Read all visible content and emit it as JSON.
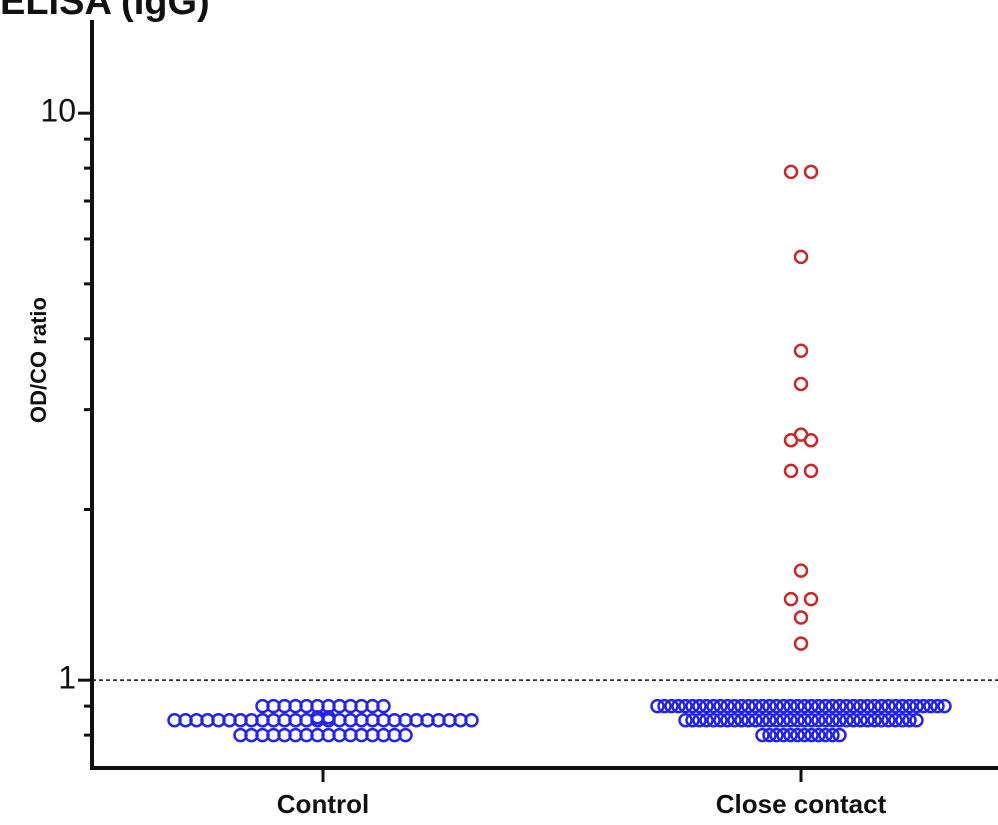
{
  "chart_data": {
    "type": "dotplot",
    "title": "ELISA (IgG)",
    "y_label": "OD/CO ratio",
    "categories": [
      "Control",
      "Close contact"
    ],
    "y_scale": "log",
    "ylim": [
      0.7,
      14.6
    ],
    "yticks": [
      1,
      10
    ],
    "yminorticks": [
      0.8,
      0.9,
      2,
      3,
      4,
      5,
      6,
      7,
      8,
      9
    ],
    "reference_line": 1,
    "series": [
      {
        "color": "#2424e6",
        "values": [
          [
            0.9,
            0.9,
            0.9,
            0.9,
            0.9,
            0.9,
            0.9,
            0.9,
            0.9,
            0.9,
            0.9,
            0.9,
            0.86,
            0.86,
            0.85,
            0.85,
            0.85,
            0.85,
            0.85,
            0.85,
            0.85,
            0.85,
            0.85,
            0.85,
            0.85,
            0.85,
            0.85,
            0.85,
            0.85,
            0.85,
            0.85,
            0.85,
            0.85,
            0.85,
            0.85,
            0.85,
            0.85,
            0.85,
            0.85,
            0.85,
            0.85,
            0.85,
            0.8,
            0.8,
            0.8,
            0.8,
            0.8,
            0.8,
            0.8,
            0.8,
            0.8,
            0.8,
            0.8,
            0.8,
            0.8,
            0.8,
            0.8,
            0.8
          ],
          [
            0.9,
            0.9,
            0.9,
            0.9,
            0.9,
            0.9,
            0.9,
            0.9,
            0.9,
            0.9,
            0.9,
            0.9,
            0.9,
            0.9,
            0.9,
            0.9,
            0.9,
            0.9,
            0.9,
            0.9,
            0.9,
            0.9,
            0.9,
            0.9,
            0.9,
            0.9,
            0.9,
            0.9,
            0.9,
            0.9,
            0.9,
            0.9,
            0.9,
            0.9,
            0.9,
            0.9,
            0.9,
            0.9,
            0.9,
            0.9,
            0.9,
            0.9,
            0.85,
            0.85,
            0.85,
            0.85,
            0.85,
            0.85,
            0.85,
            0.85,
            0.85,
            0.85,
            0.85,
            0.85,
            0.85,
            0.85,
            0.85,
            0.85,
            0.85,
            0.85,
            0.85,
            0.85,
            0.85,
            0.85,
            0.85,
            0.85,
            0.85,
            0.85,
            0.85,
            0.85,
            0.85,
            0.85,
            0.85,
            0.85,
            0.85,
            0.85,
            0.8,
            0.8,
            0.8,
            0.8,
            0.8,
            0.8,
            0.8,
            0.8,
            0.8,
            0.8,
            0.8,
            0.8
          ]
        ]
      },
      {
        "color": "#c42a2a",
        "values": [
          [],
          [
            7.88,
            7.88,
            5.58,
            3.81,
            3.33,
            2.71,
            2.65,
            2.65,
            2.34,
            2.34,
            1.56,
            1.39,
            1.39,
            1.29,
            1.16
          ]
        ]
      }
    ]
  }
}
